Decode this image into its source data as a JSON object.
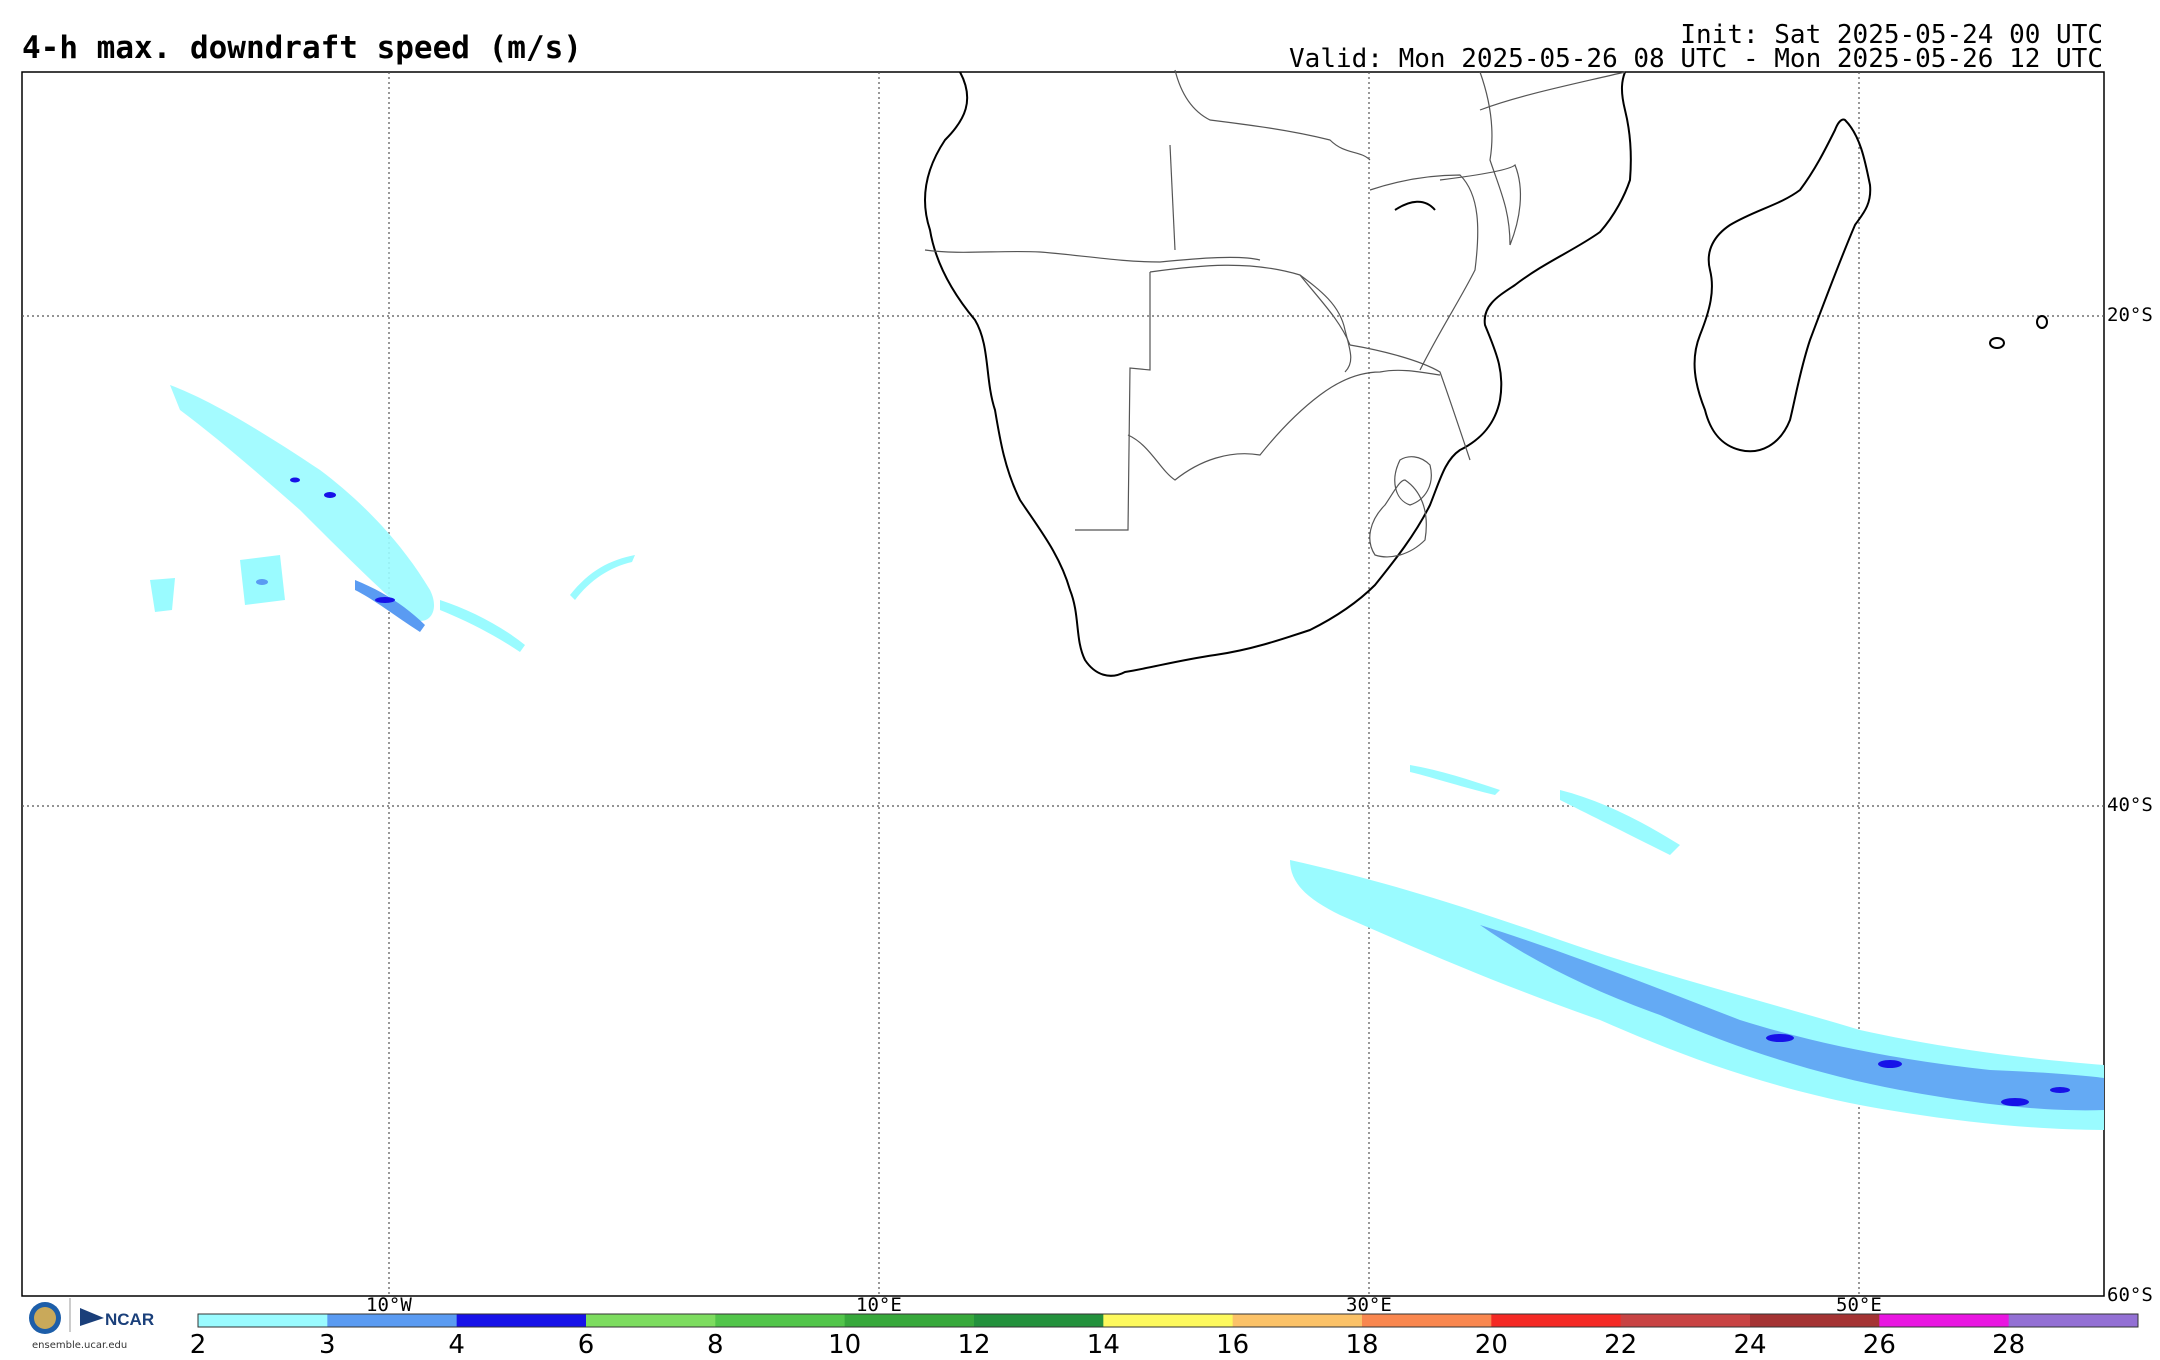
{
  "header": {
    "title": "4-h max. downdraft speed (m/s)",
    "init": "Init: Sat 2025-05-24 00 UTC",
    "valid": "Valid: Mon 2025-05-26 08 UTC - Mon 2025-05-26 12 UTC"
  },
  "grid": {
    "lat_labels": [
      "20°S",
      "40°S",
      "60°S"
    ],
    "lon_labels": [
      "10°W",
      "10°E",
      "30°E",
      "50°E"
    ]
  },
  "colorbar": {
    "ticks": [
      "2",
      "3",
      "4",
      "6",
      "8",
      "10",
      "12",
      "14",
      "16",
      "18",
      "20",
      "22",
      "24",
      "26",
      "28"
    ],
    "colors": [
      "#9afbff",
      "#5a9bf2",
      "#1712e8",
      "#7ddc5f",
      "#52c54a",
      "#37a83b",
      "#23913c",
      "#fdf95d",
      "#fbc268",
      "#f9874f",
      "#f42924",
      "#c84343",
      "#a43333",
      "#e916e1",
      "#9370d4"
    ]
  },
  "footer": {
    "logo_text": "NCAR",
    "url": "ensemble.ucar.edu"
  },
  "map_colors": {
    "light": "#9afbff",
    "medium": "#5a9bf2",
    "dark": "#1712e8",
    "coast": "#000000"
  }
}
